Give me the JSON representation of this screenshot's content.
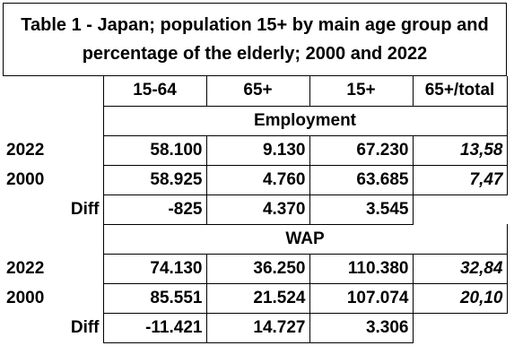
{
  "title": "Table 1 - Japan; population 15+ by main age group and percentage of the elderly; 2000 and 2022",
  "columns": [
    "15-64",
    "65+",
    "15+",
    "65+/total"
  ],
  "sections": [
    {
      "name": "Employment",
      "rows": [
        {
          "label": "2022",
          "values": [
            "58.100",
            "9.130",
            "67.230",
            "13,58"
          ]
        },
        {
          "label": "2000",
          "values": [
            "58.925",
            "4.760",
            "63.685",
            "7,47"
          ]
        },
        {
          "label": "Diff",
          "values": [
            "-825",
            "4.370",
            "3.545"
          ]
        }
      ]
    },
    {
      "name": "WAP",
      "rows": [
        {
          "label": "2022",
          "values": [
            "74.130",
            "36.250",
            "110.380",
            "32,84"
          ]
        },
        {
          "label": "2000",
          "values": [
            "85.551",
            "21.524",
            "107.074",
            "20,10"
          ]
        },
        {
          "label": "Diff",
          "values": [
            "-11.421",
            "14.727",
            "3.306"
          ]
        }
      ]
    }
  ]
}
